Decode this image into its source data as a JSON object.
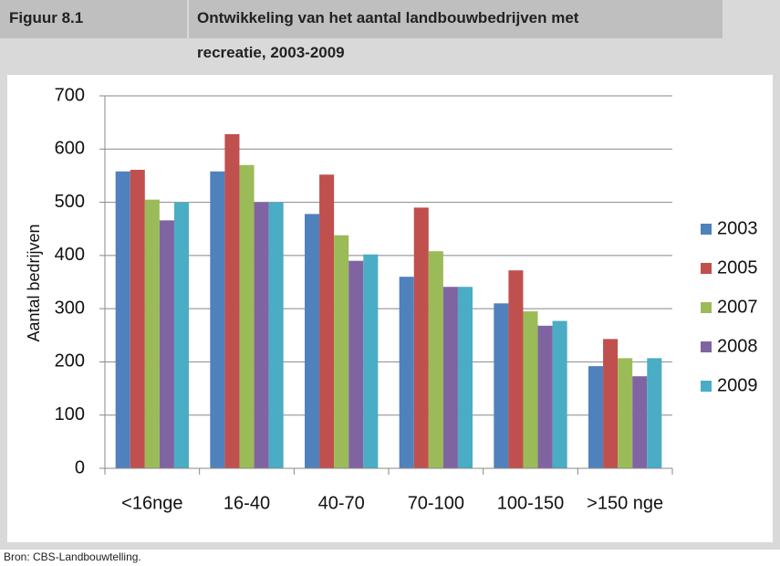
{
  "header": {
    "figure": "Figuur 8.1",
    "title": [
      "Ontwikkeling van het aantal landbouwbedrijven met",
      "recreatie, 2003-2009"
    ]
  },
  "source": "Bron: CBS-Landbouwtelling.",
  "chart_data": {
    "type": "bar",
    "y_label": "Aantal bedrijven",
    "categories": [
      "<16nge",
      "16-40",
      "40-70",
      "70-100",
      "100-150",
      ">150 nge"
    ],
    "series": [
      {
        "name": "2003",
        "color": "#4f81bd",
        "values": [
          558,
          558,
          478,
          360,
          310,
          192
        ]
      },
      {
        "name": "2005",
        "color": "#c0504d",
        "values": [
          561,
          628,
          552,
          490,
          372,
          243
        ]
      },
      {
        "name": "2007",
        "color": "#9bbb59",
        "values": [
          505,
          570,
          438,
          408,
          295,
          207
        ]
      },
      {
        "name": "2008",
        "color": "#8064a2",
        "values": [
          466,
          500,
          390,
          341,
          268,
          173
        ]
      },
      {
        "name": "2009",
        "color": "#4bacc6",
        "values": [
          500,
          500,
          402,
          341,
          277,
          207
        ]
      }
    ],
    "ylim": [
      0,
      700
    ],
    "yticks": [
      0,
      100,
      200,
      300,
      400,
      500,
      600,
      700
    ],
    "grid": true,
    "legend": "right"
  }
}
